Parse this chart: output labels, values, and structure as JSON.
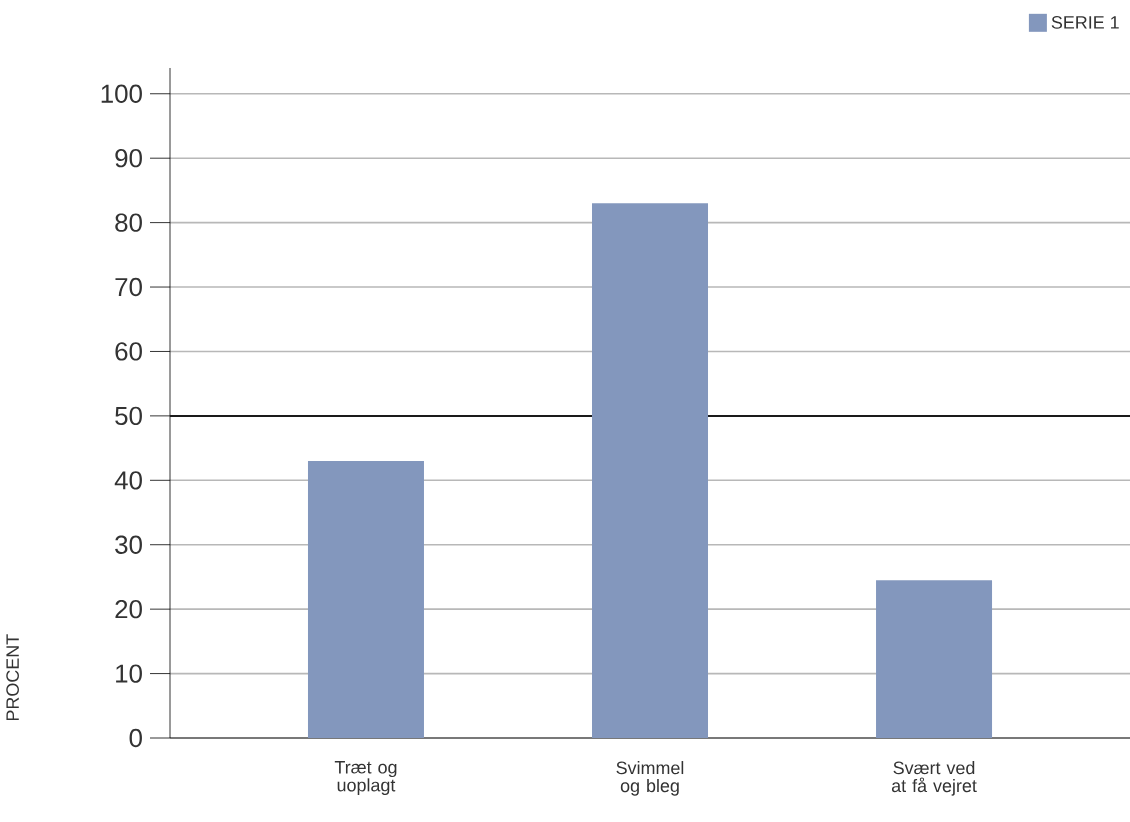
{
  "chart_data": {
    "type": "bar",
    "categories": [
      "Træt og uoplagt",
      "Svimmel og bleg",
      "Svært ved at få vejret"
    ],
    "series": [
      {
        "name": "SERIE 1",
        "color": "#8397bd",
        "values": [
          43,
          83,
          24.5
        ]
      }
    ],
    "ylabel": "PROCENT",
    "ylim": [
      0,
      104
    ],
    "yticks": [
      0,
      10,
      20,
      30,
      40,
      50,
      60,
      70,
      80,
      90,
      100
    ],
    "grid": "y",
    "legend": "top right",
    "ref_lines": [
      {
        "axis": "y",
        "value": 50,
        "color": "#1a1a1a"
      }
    ]
  }
}
